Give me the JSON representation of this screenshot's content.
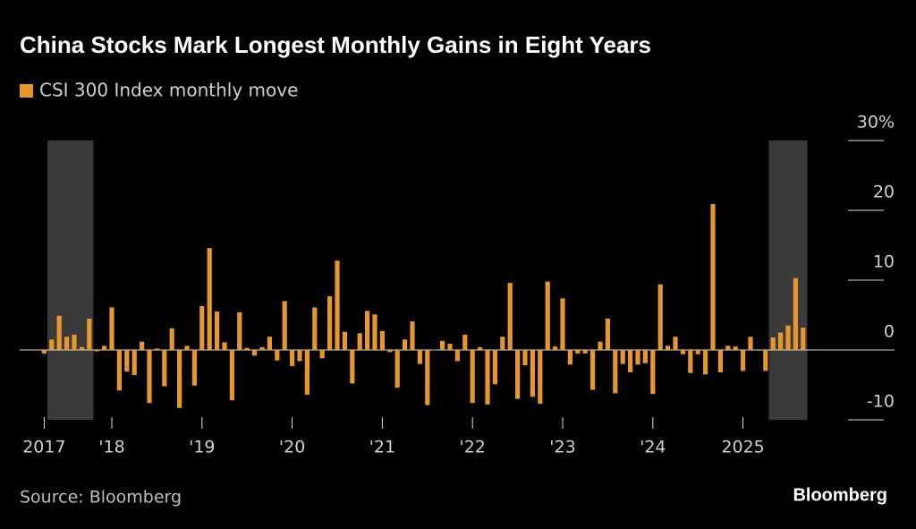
{
  "chart_data": {
    "type": "bar",
    "title": "China Stocks Mark Longest Monthly Gains in Eight Years",
    "series": [
      {
        "name": "CSI 300 Index monthly move",
        "color": "#e8962e",
        "values": [
          -0.5,
          1.5,
          4.9,
          1.9,
          2.2,
          0.4,
          4.5,
          -0.2,
          0.6,
          6.1,
          -5.8,
          -3.1,
          -3.6,
          1.2,
          -7.6,
          0.2,
          -5.2,
          3.1,
          -8.3,
          0.6,
          -5.1,
          6.3,
          14.6,
          5.5,
          1.1,
          -7.2,
          5.4,
          0.3,
          -0.8,
          0.4,
          1.9,
          -1.5,
          7.0,
          -2.3,
          -1.6,
          -6.4,
          6.1,
          -1.2,
          7.7,
          12.8,
          2.6,
          -4.8,
          2.4,
          5.6,
          5.1,
          2.7,
          -0.3,
          -5.4,
          1.5,
          4.1,
          -2.0,
          -7.9,
          0.0,
          1.3,
          0.9,
          -1.6,
          2.2,
          -7.6,
          0.4,
          -7.8,
          -4.9,
          1.9,
          9.6,
          -7.0,
          -2.2,
          -6.7,
          -7.7,
          9.8,
          0.5,
          7.4,
          -2.1,
          -0.5,
          -0.5,
          -5.7,
          1.2,
          4.5,
          -6.2,
          -2.0,
          -3.2,
          -2.1,
          -1.9,
          -6.3,
          9.4,
          0.6,
          1.9,
          -0.6,
          -3.3,
          -0.6,
          -3.5,
          20.9,
          -3.2,
          0.6,
          0.5,
          -3.0,
          1.9,
          -0.1,
          -3.0,
          1.8,
          2.5,
          3.5,
          10.3,
          3.2
        ]
      }
    ],
    "categories": [
      "2017",
      null,
      null,
      null,
      null,
      null,
      null,
      null,
      null,
      "'18",
      null,
      null,
      null,
      null,
      null,
      null,
      null,
      null,
      null,
      null,
      null,
      "'19",
      null,
      null,
      null,
      null,
      null,
      null,
      null,
      null,
      null,
      null,
      null,
      "'20",
      null,
      null,
      null,
      null,
      null,
      null,
      null,
      null,
      null,
      null,
      null,
      "'21",
      null,
      null,
      null,
      null,
      null,
      null,
      null,
      null,
      null,
      null,
      null,
      "'22",
      null,
      null,
      null,
      null,
      null,
      null,
      null,
      null,
      null,
      null,
      null,
      "'23",
      null,
      null,
      null,
      null,
      null,
      null,
      null,
      null,
      null,
      null,
      null,
      "'24",
      null,
      null,
      null,
      null,
      null,
      null,
      null,
      null,
      null,
      null,
      null,
      "2025",
      null,
      null,
      null,
      null,
      null,
      null,
      null,
      null
    ],
    "highlight_ranges": [
      [
        1,
        6
      ],
      [
        97,
        101
      ]
    ],
    "highlight_color": "#3a3a3a",
    "ylim": [
      -10,
      30
    ],
    "yticks": [
      -10,
      0,
      10,
      20,
      {
        "value": 30,
        "label": "30%"
      }
    ],
    "source": "Source: Bloomberg",
    "brand": "Bloomberg"
  }
}
